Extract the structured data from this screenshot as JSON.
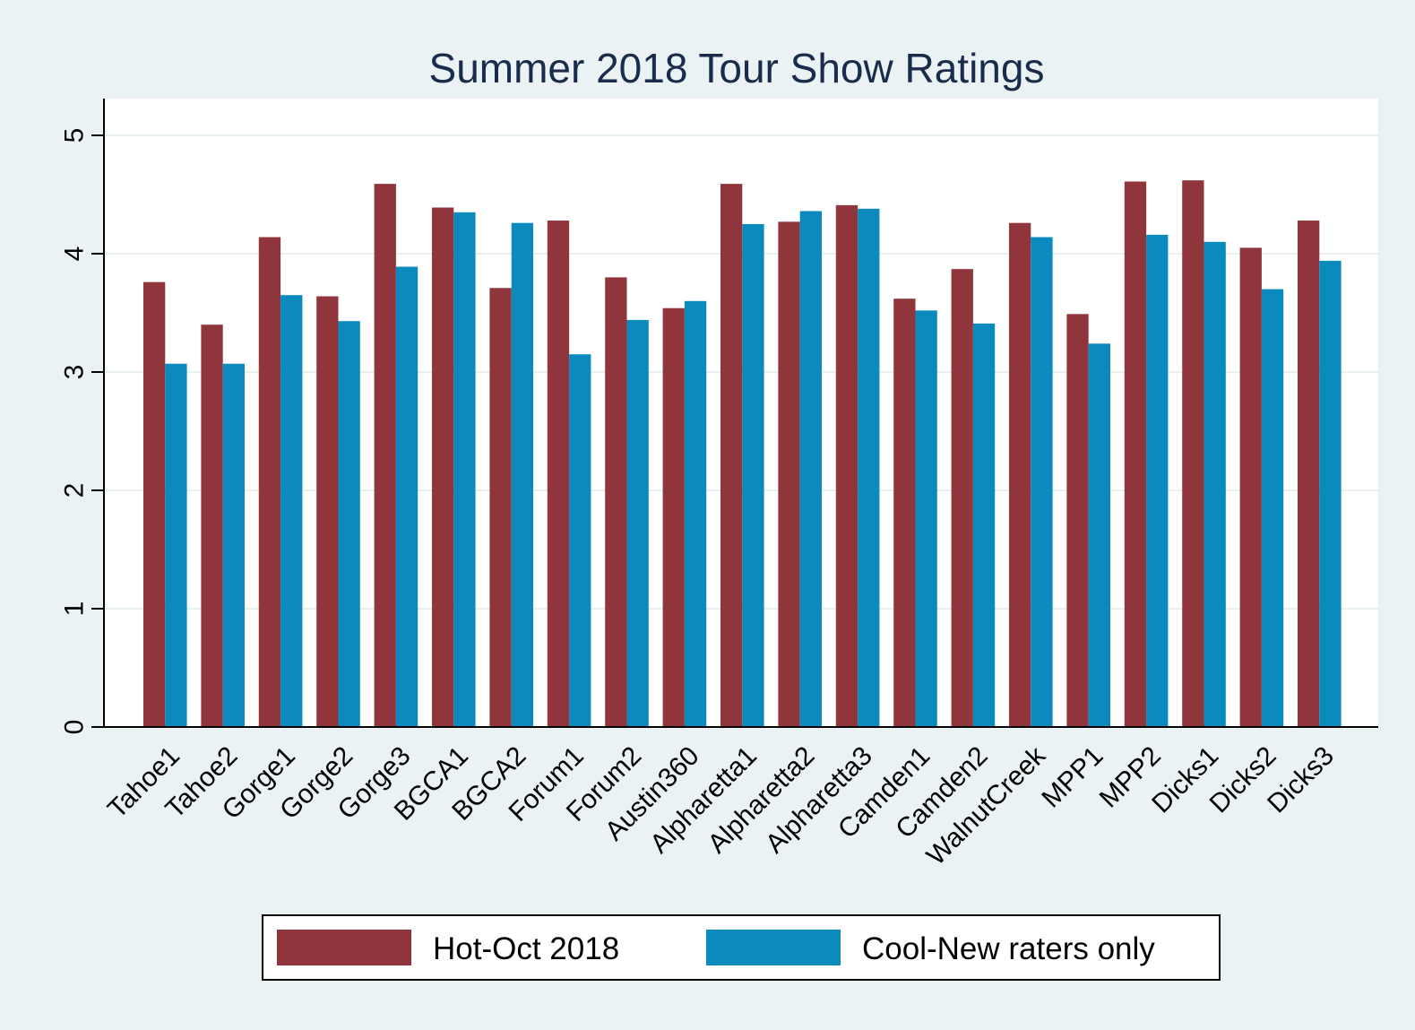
{
  "chart_data": {
    "type": "bar",
    "title": "Summer 2018 Tour Show Ratings",
    "xlabel": "",
    "ylabel": "",
    "ylim": [
      0,
      5.3
    ],
    "yticks": [
      0,
      1,
      2,
      3,
      4,
      5
    ],
    "grid": true,
    "legend_position": "bottom",
    "categories": [
      "Tahoe1",
      "Tahoe2",
      "Gorge1",
      "Gorge2",
      "Gorge3",
      "BGCA1",
      "BGCA2",
      "Forum1",
      "Forum2",
      "Austin360",
      "Alpharetta1",
      "Alpharetta2",
      "Alpharetta3",
      "Camden1",
      "Camden2",
      "WalnutCreek",
      "MPP1",
      "MPP2",
      "Dicks1",
      "Dicks2",
      "Dicks3"
    ],
    "series": [
      {
        "name": "Hot-Oct 2018",
        "color": "#90353b",
        "values": [
          3.76,
          3.4,
          4.14,
          3.64,
          4.59,
          4.39,
          3.71,
          4.28,
          3.8,
          3.54,
          4.59,
          4.27,
          4.41,
          3.62,
          3.87,
          4.26,
          3.49,
          4.61,
          4.62,
          4.05,
          4.28
        ]
      },
      {
        "name": "Cool-New raters only",
        "color": "#0b8bbd",
        "values": [
          3.07,
          3.07,
          3.65,
          3.43,
          3.89,
          4.35,
          4.26,
          3.15,
          3.44,
          3.6,
          4.25,
          4.36,
          4.38,
          3.52,
          3.41,
          4.14,
          3.24,
          4.16,
          4.1,
          3.7,
          3.94
        ]
      }
    ]
  }
}
